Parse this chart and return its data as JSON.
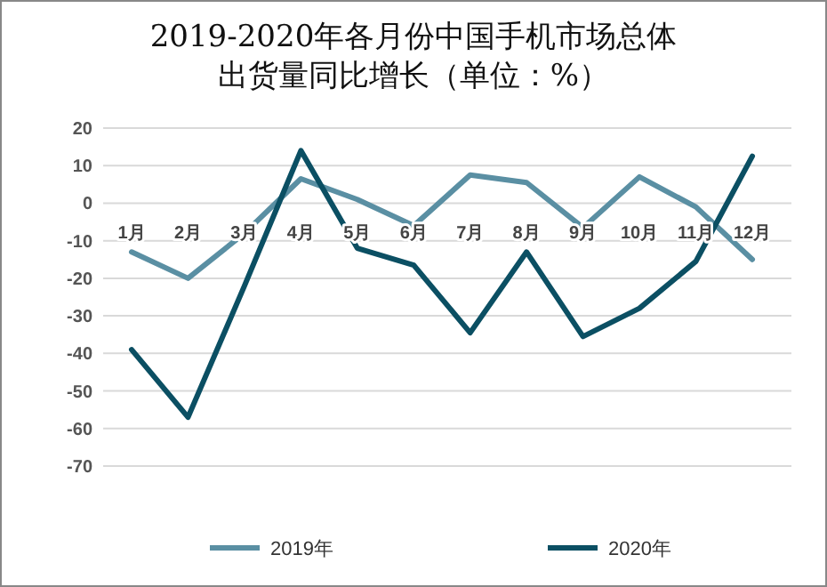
{
  "chart_data": {
    "type": "line",
    "title": "2019-2020年各月份中国手机市场总体出货量同比增长（单位：%）",
    "categories": [
      "1月",
      "2月",
      "3月",
      "4月",
      "5月",
      "6月",
      "7月",
      "8月",
      "9月",
      "10月",
      "11月",
      "12月"
    ],
    "series": [
      {
        "name": "2019年",
        "color": "#5a8fa3",
        "values": [
          -13,
          -20,
          -8,
          6.5,
          1,
          -6,
          7.5,
          5.5,
          -6.5,
          7,
          -1,
          -15
        ]
      },
      {
        "name": "2020年",
        "color": "#0b4f63",
        "values": [
          -39,
          -57,
          -22,
          14,
          -12,
          -16.5,
          -34.5,
          -13,
          -35.5,
          -28,
          -15.5,
          12.5
        ]
      }
    ],
    "ylim": [
      -70,
      20
    ],
    "yticks": [
      -70,
      -60,
      -50,
      -40,
      -30,
      -20,
      -10,
      0,
      10,
      20
    ],
    "grid": "y",
    "legend": "bottom",
    "marker": "none",
    "line_style": "solid"
  }
}
